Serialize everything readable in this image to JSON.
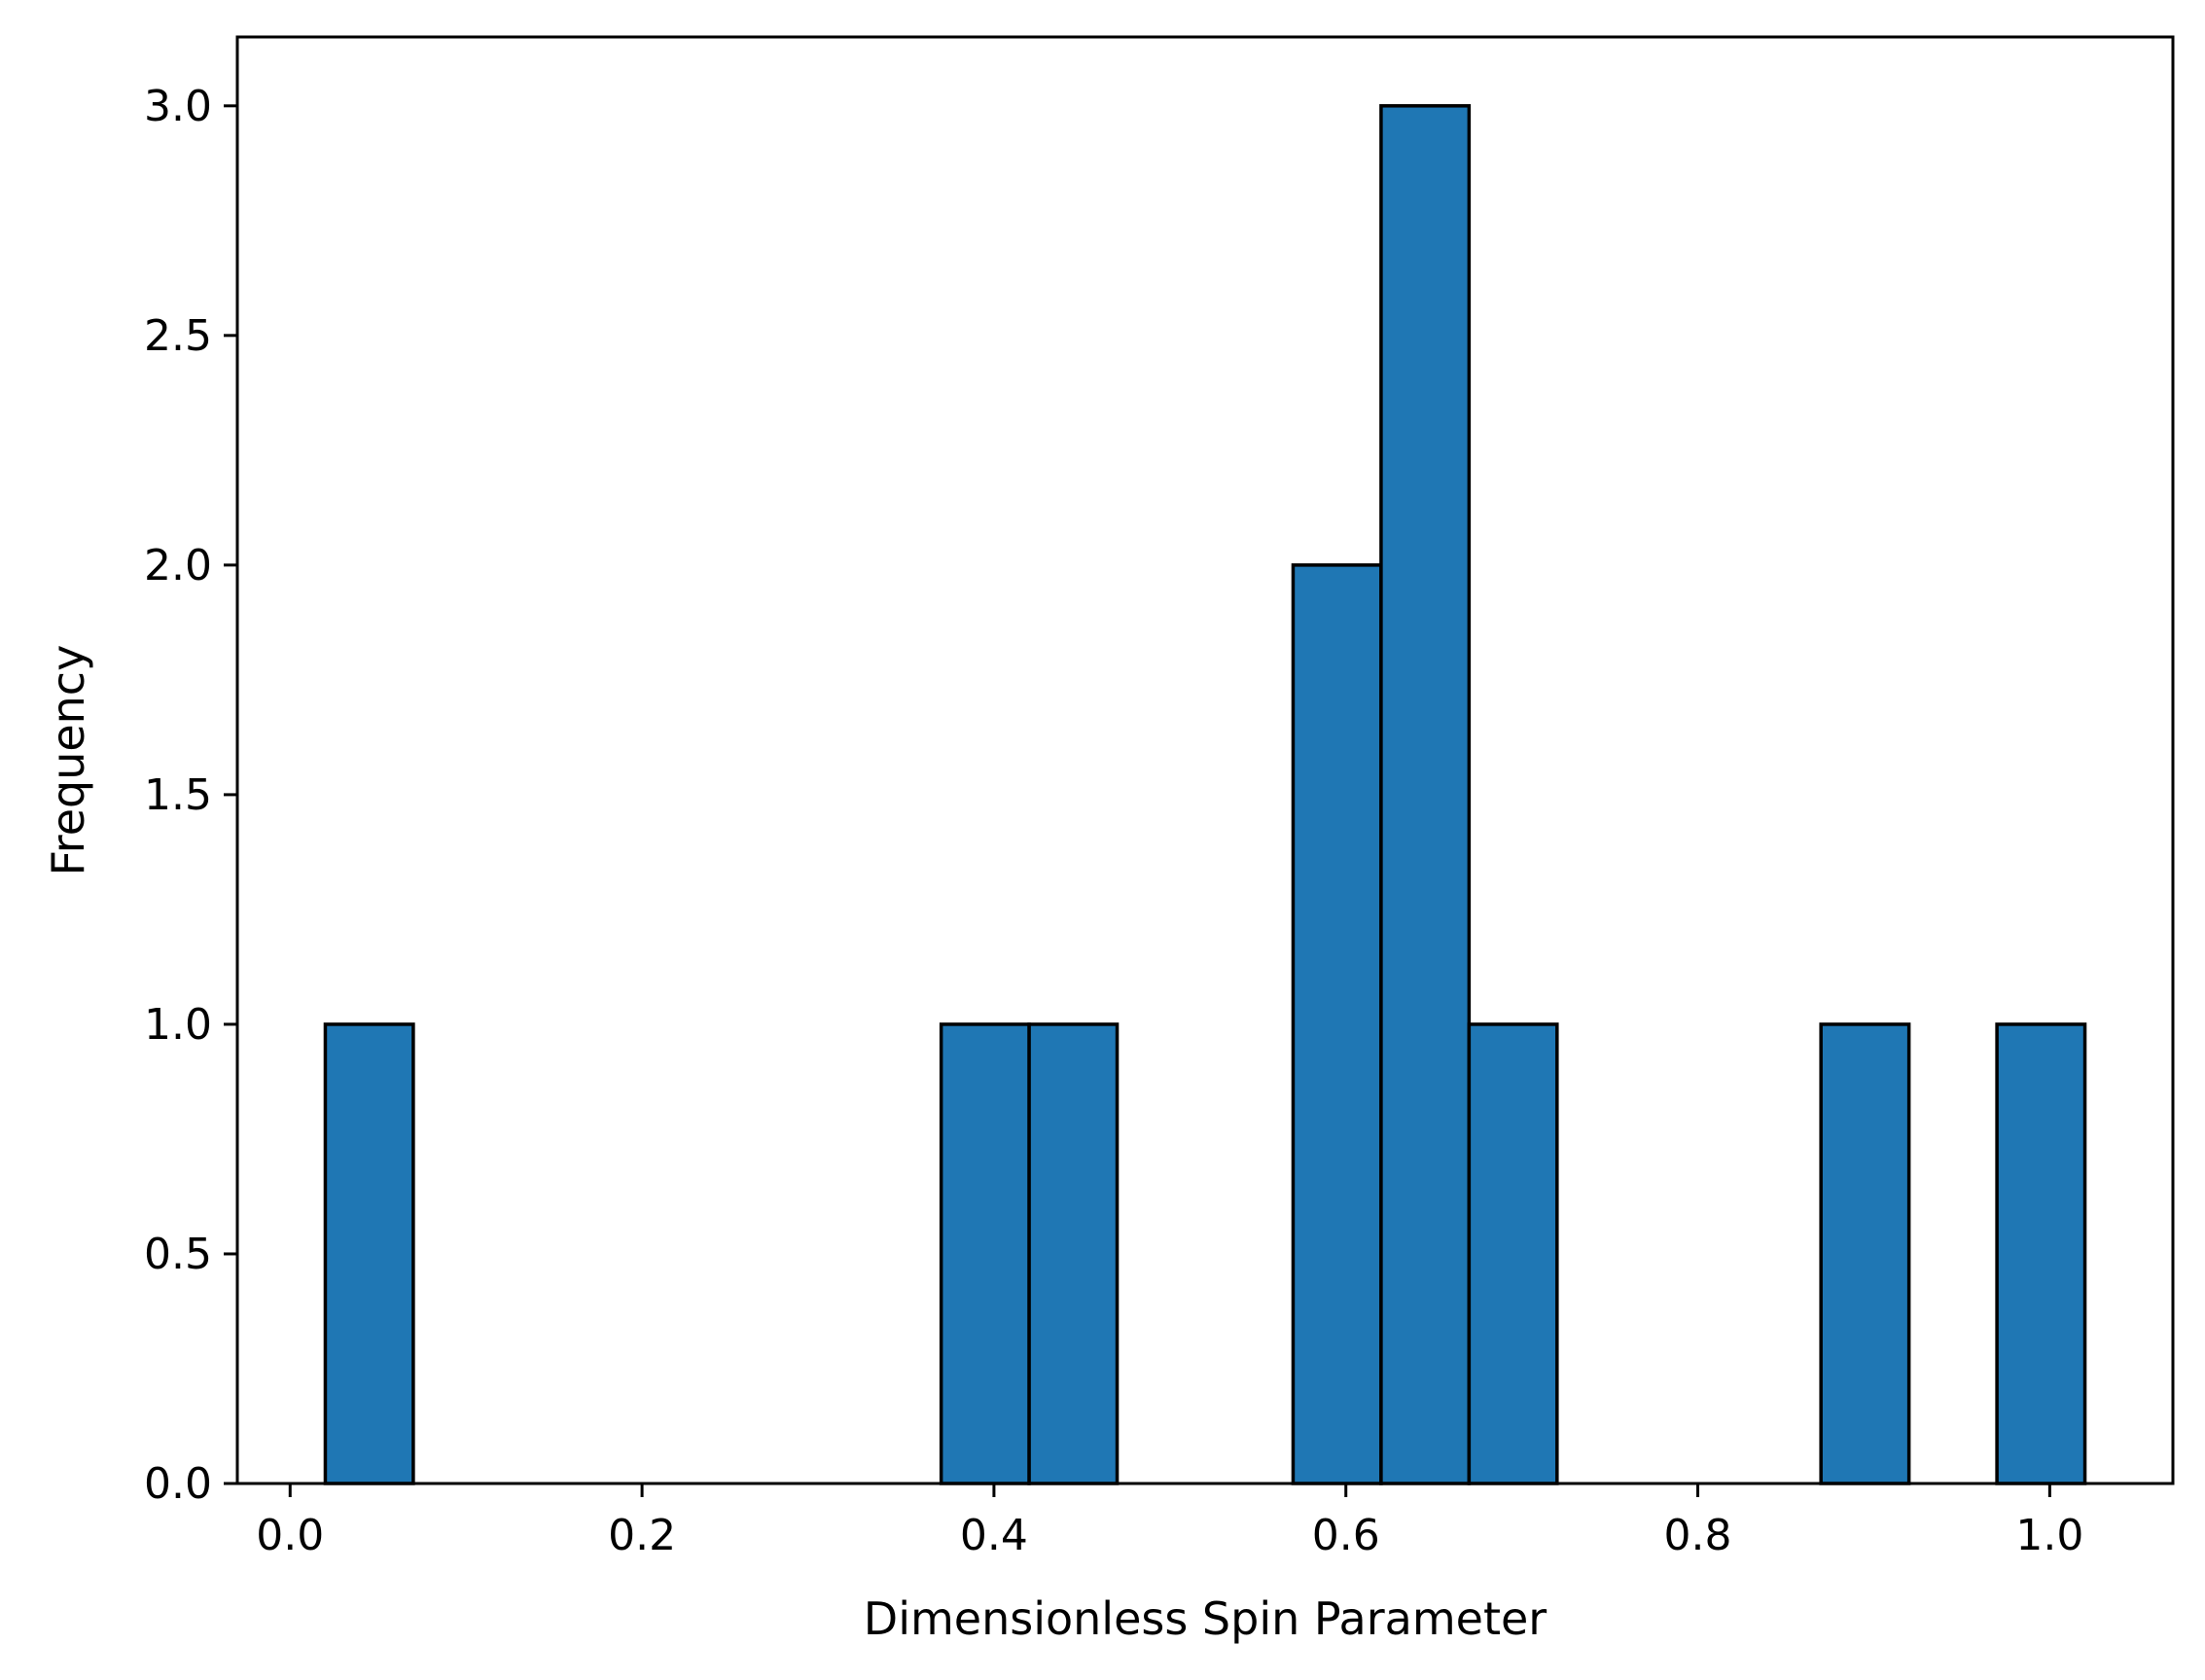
{
  "chart_data": {
    "type": "bar",
    "subtype": "histogram",
    "xlabel": "Dimensionless Spin Parameter",
    "ylabel": "Frequency",
    "xlim": [
      -0.03,
      1.07
    ],
    "ylim": [
      0,
      3.15
    ],
    "xticks": [
      "0.0",
      "0.2",
      "0.4",
      "0.6",
      "0.8",
      "1.0"
    ],
    "yticks": [
      "0.0",
      "0.5",
      "1.0",
      "1.5",
      "2.0",
      "2.5",
      "3.0"
    ],
    "grid": false,
    "legend": "none",
    "bar_color": "#1f77b4",
    "edge_color": "#000000",
    "bins": [
      {
        "x0": 0.02,
        "x1": 0.07,
        "count": 1
      },
      {
        "x0": 0.37,
        "x1": 0.42,
        "count": 1
      },
      {
        "x0": 0.42,
        "x1": 0.47,
        "count": 1
      },
      {
        "x0": 0.57,
        "x1": 0.62,
        "count": 2
      },
      {
        "x0": 0.62,
        "x1": 0.67,
        "count": 3
      },
      {
        "x0": 0.67,
        "x1": 0.72,
        "count": 1
      },
      {
        "x0": 0.87,
        "x1": 0.92,
        "count": 1
      },
      {
        "x0": 0.97,
        "x1": 1.02,
        "count": 1
      }
    ]
  }
}
